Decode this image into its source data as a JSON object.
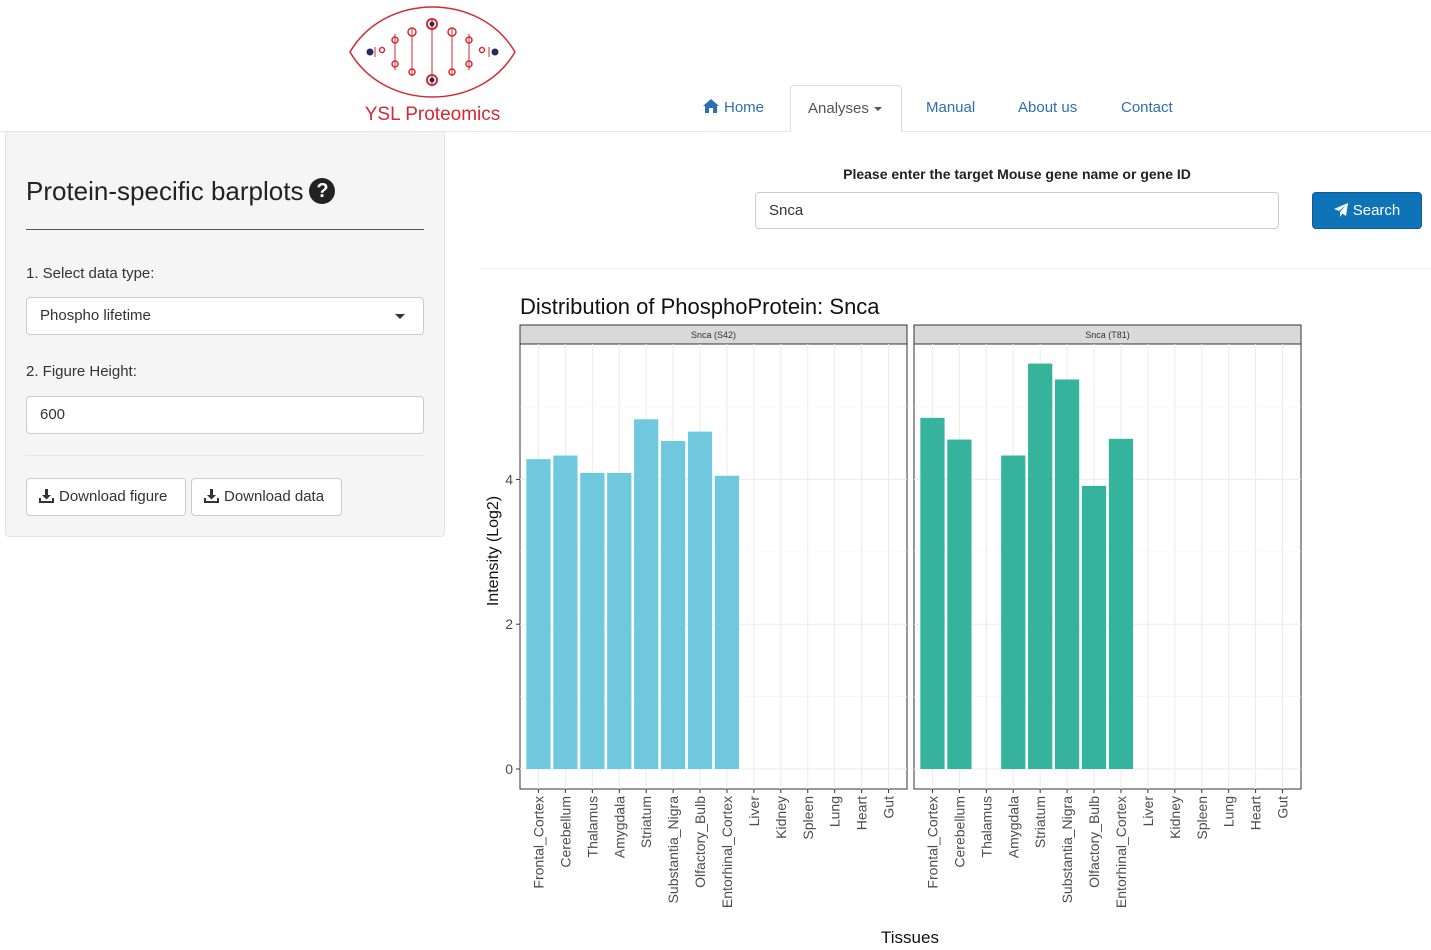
{
  "brand": {
    "name": "YSL Proteomics",
    "logo_icon": "dna-helix-icon",
    "accent": "#d42a33"
  },
  "nav": {
    "home": "Home",
    "analyses": "Analyses",
    "manual": "Manual",
    "about": "About us",
    "contact": "Contact"
  },
  "sidebar": {
    "title": "Protein-specific barplots",
    "data_type_label": "1. Select data type:",
    "data_type_value": "Phospho lifetime",
    "height_label": "2. Figure Height:",
    "height_value": "600",
    "download_figure": "Download figure",
    "download_data": "Download data"
  },
  "search": {
    "label": "Please enter the target Mouse gene name or gene ID",
    "value": "Snca",
    "button": "Search"
  },
  "chart_data": {
    "type": "bar",
    "title": "Distribution of PhosphoProtein: Snca",
    "xlabel": "Tissues",
    "ylabel": "Intensity (Log2)",
    "ylim": [
      0,
      6
    ],
    "yticks": [
      0,
      2,
      4
    ],
    "categories": [
      "Frontal_Cortex",
      "Cerebellum",
      "Thalamus",
      "Amygdala",
      "Striatum",
      "Substantia_Nigra",
      "Olfactory_Bulb",
      "Entorhinal_Cortex",
      "Liver",
      "Kidney",
      "Spleen",
      "Lung",
      "Heart",
      "Gut"
    ],
    "facets": [
      {
        "name": "Snca (S42)",
        "color": "#70c8de",
        "values": [
          4.28,
          4.33,
          4.09,
          4.09,
          4.83,
          4.53,
          4.66,
          4.05,
          null,
          null,
          null,
          null,
          null,
          null
        ]
      },
      {
        "name": "Snca (T81)",
        "color": "#35b39c",
        "values": [
          4.85,
          4.55,
          null,
          4.33,
          5.6,
          5.38,
          3.91,
          4.56,
          null,
          null,
          null,
          null,
          null,
          null
        ]
      }
    ],
    "grid": true,
    "legend": "none"
  }
}
